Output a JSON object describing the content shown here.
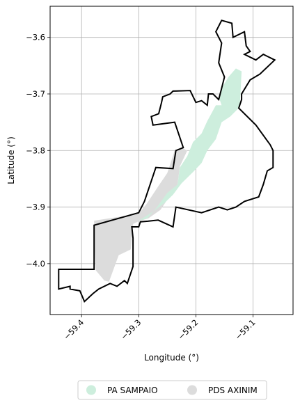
{
  "chart_data": {
    "type": "map",
    "title": "",
    "xlabel": "Longitude (°)",
    "ylabel": "Latitude (°)",
    "xlim": [
      -59.455,
      -59.03
    ],
    "ylim": [
      -4.09,
      -3.545
    ],
    "xticks": [
      -59.4,
      -59.3,
      -59.2,
      -59.1
    ],
    "xtick_labels": [
      "−59.4",
      "−59.3",
      "−59.2",
      "−59.1"
    ],
    "yticks": [
      -3.6,
      -3.7,
      -3.8,
      -3.9,
      -4.0
    ],
    "ytick_labels": [
      "−3.6",
      "−3.7",
      "−3.8",
      "−3.9",
      "−4.0"
    ],
    "grid": true,
    "legend_placement": "bottom-center",
    "legend": [
      {
        "label": "PA SAMPAIO",
        "color": "#cdeedd"
      },
      {
        "label": "PDS AXINIM",
        "color": "#dcdcdc"
      }
    ],
    "regions": [
      {
        "name": "PDS AXINIM",
        "color": "#dcdcdc",
        "coords": [
          [
            -59.378,
            -3.95
          ],
          [
            -59.378,
            -3.924
          ],
          [
            -59.3,
            -3.912
          ],
          [
            -59.286,
            -3.894
          ],
          [
            -59.265,
            -3.862
          ],
          [
            -59.25,
            -3.84
          ],
          [
            -59.237,
            -3.8
          ],
          [
            -59.225,
            -3.795
          ],
          [
            -59.215,
            -3.8
          ],
          [
            -59.228,
            -3.828
          ],
          [
            -59.232,
            -3.86
          ],
          [
            -59.262,
            -3.905
          ],
          [
            -59.283,
            -3.92
          ],
          [
            -59.3,
            -3.925
          ],
          [
            -59.31,
            -3.93
          ],
          [
            -59.314,
            -3.975
          ],
          [
            -59.335,
            -3.985
          ],
          [
            -59.352,
            -4.032
          ],
          [
            -59.36,
            -4.03
          ],
          [
            -59.375,
            -4.012
          ],
          [
            -59.378,
            -3.96
          ]
        ]
      },
      {
        "name": "PA SAMPAIO",
        "color": "#cdeedd",
        "coords": [
          [
            -59.3,
            -3.924
          ],
          [
            -59.285,
            -3.92
          ],
          [
            -59.268,
            -3.9
          ],
          [
            -59.25,
            -3.875
          ],
          [
            -59.232,
            -3.86
          ],
          [
            -59.228,
            -3.83
          ],
          [
            -59.215,
            -3.81
          ],
          [
            -59.205,
            -3.785
          ],
          [
            -59.19,
            -3.77
          ],
          [
            -59.18,
            -3.748
          ],
          [
            -59.165,
            -3.72
          ],
          [
            -59.155,
            -3.72
          ],
          [
            -59.16,
            -3.705
          ],
          [
            -59.155,
            -3.69
          ],
          [
            -59.143,
            -3.67
          ],
          [
            -59.13,
            -3.655
          ],
          [
            -59.12,
            -3.66
          ],
          [
            -59.123,
            -3.72
          ],
          [
            -59.125,
            -3.725
          ],
          [
            -59.14,
            -3.74
          ],
          [
            -59.155,
            -3.75
          ],
          [
            -59.165,
            -3.78
          ],
          [
            -59.18,
            -3.8
          ],
          [
            -59.19,
            -3.822
          ],
          [
            -59.205,
            -3.838
          ],
          [
            -59.225,
            -3.858
          ],
          [
            -59.24,
            -3.878
          ],
          [
            -59.255,
            -3.893
          ],
          [
            -59.275,
            -3.908
          ],
          [
            -59.3,
            -3.924
          ]
        ]
      }
    ],
    "outline": {
      "name": "boundary",
      "color": "#000000",
      "coords": [
        [
          -59.44,
          -4.045
        ],
        [
          -59.44,
          -4.01
        ],
        [
          -59.378,
          -4.01
        ],
        [
          -59.378,
          -3.932
        ],
        [
          -59.3,
          -3.91
        ],
        [
          -59.29,
          -3.89
        ],
        [
          -59.27,
          -3.83
        ],
        [
          -59.24,
          -3.832
        ],
        [
          -59.235,
          -3.8
        ],
        [
          -59.222,
          -3.795
        ],
        [
          -59.237,
          -3.75
        ],
        [
          -59.275,
          -3.755
        ],
        [
          -59.278,
          -3.74
        ],
        [
          -59.265,
          -3.735
        ],
        [
          -59.26,
          -3.715
        ],
        [
          -59.258,
          -3.705
        ],
        [
          -59.245,
          -3.7
        ],
        [
          -59.24,
          -3.695
        ],
        [
          -59.21,
          -3.694
        ],
        [
          -59.2,
          -3.715
        ],
        [
          -59.19,
          -3.712
        ],
        [
          -59.18,
          -3.72
        ],
        [
          -59.178,
          -3.7
        ],
        [
          -59.17,
          -3.7
        ],
        [
          -59.16,
          -3.71
        ],
        [
          -59.155,
          -3.69
        ],
        [
          -59.15,
          -3.67
        ],
        [
          -59.16,
          -3.645
        ],
        [
          -59.155,
          -3.61
        ],
        [
          -59.165,
          -3.59
        ],
        [
          -59.155,
          -3.57
        ],
        [
          -59.137,
          -3.575
        ],
        [
          -59.135,
          -3.6
        ],
        [
          -59.115,
          -3.59
        ],
        [
          -59.112,
          -3.615
        ],
        [
          -59.105,
          -3.625
        ],
        [
          -59.115,
          -3.63
        ],
        [
          -59.095,
          -3.64
        ],
        [
          -59.082,
          -3.63
        ],
        [
          -59.062,
          -3.64
        ],
        [
          -59.088,
          -3.665
        ],
        [
          -59.105,
          -3.675
        ],
        [
          -59.12,
          -3.7
        ],
        [
          -59.12,
          -3.71
        ],
        [
          -59.125,
          -3.725
        ],
        [
          -59.095,
          -3.755
        ],
        [
          -59.07,
          -3.79
        ],
        [
          -59.065,
          -3.8
        ],
        [
          -59.065,
          -3.83
        ],
        [
          -59.075,
          -3.836
        ],
        [
          -59.082,
          -3.86
        ],
        [
          -59.09,
          -3.882
        ],
        [
          -59.115,
          -3.89
        ],
        [
          -59.13,
          -3.9
        ],
        [
          -59.145,
          -3.905
        ],
        [
          -59.16,
          -3.9
        ],
        [
          -59.19,
          -3.91
        ],
        [
          -59.235,
          -3.9
        ],
        [
          -59.24,
          -3.935
        ],
        [
          -59.266,
          -3.923
        ],
        [
          -59.284,
          -3.925
        ],
        [
          -59.297,
          -3.926
        ],
        [
          -59.3,
          -3.935
        ],
        [
          -59.312,
          -3.935
        ],
        [
          -59.31,
          -3.955
        ],
        [
          -59.31,
          -4.005
        ],
        [
          -59.32,
          -4.035
        ],
        [
          -59.325,
          -4.03
        ],
        [
          -59.338,
          -4.04
        ],
        [
          -59.35,
          -4.035
        ],
        [
          -59.37,
          -4.045
        ],
        [
          -59.38,
          -4.053
        ],
        [
          -59.395,
          -4.067
        ],
        [
          -59.4,
          -4.055
        ],
        [
          -59.403,
          -4.048
        ],
        [
          -59.42,
          -4.045
        ],
        [
          -59.42,
          -4.04
        ],
        [
          -59.44,
          -4.045
        ]
      ]
    }
  }
}
